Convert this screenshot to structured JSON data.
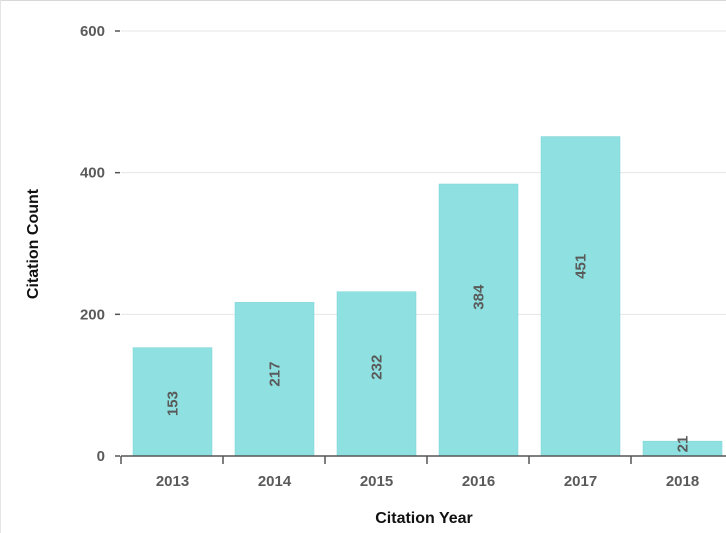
{
  "colors": {
    "bar": "#8fe0e0",
    "bar_stroke": "#7fd4d4",
    "grid": "#e6e6e6",
    "axis": "#555555",
    "tick_text": "#5a5a5a",
    "title_text": "#111111"
  },
  "chart_data": {
    "type": "bar",
    "title": "",
    "xlabel": "Citation Year",
    "ylabel": "Citation Count",
    "categories": [
      "2013",
      "2014",
      "2015",
      "2016",
      "2017",
      "2018"
    ],
    "values": [
      153,
      217,
      232,
      384,
      451,
      21
    ],
    "value_labels": [
      "153",
      "217",
      "232",
      "384",
      "451",
      "21"
    ],
    "ylim": [
      0,
      600
    ],
    "yticks": [
      0,
      200,
      400,
      600
    ],
    "ytick_labels": [
      "0",
      "200",
      "400",
      "600"
    ],
    "grid": true,
    "bar_labels_rotated": true
  }
}
